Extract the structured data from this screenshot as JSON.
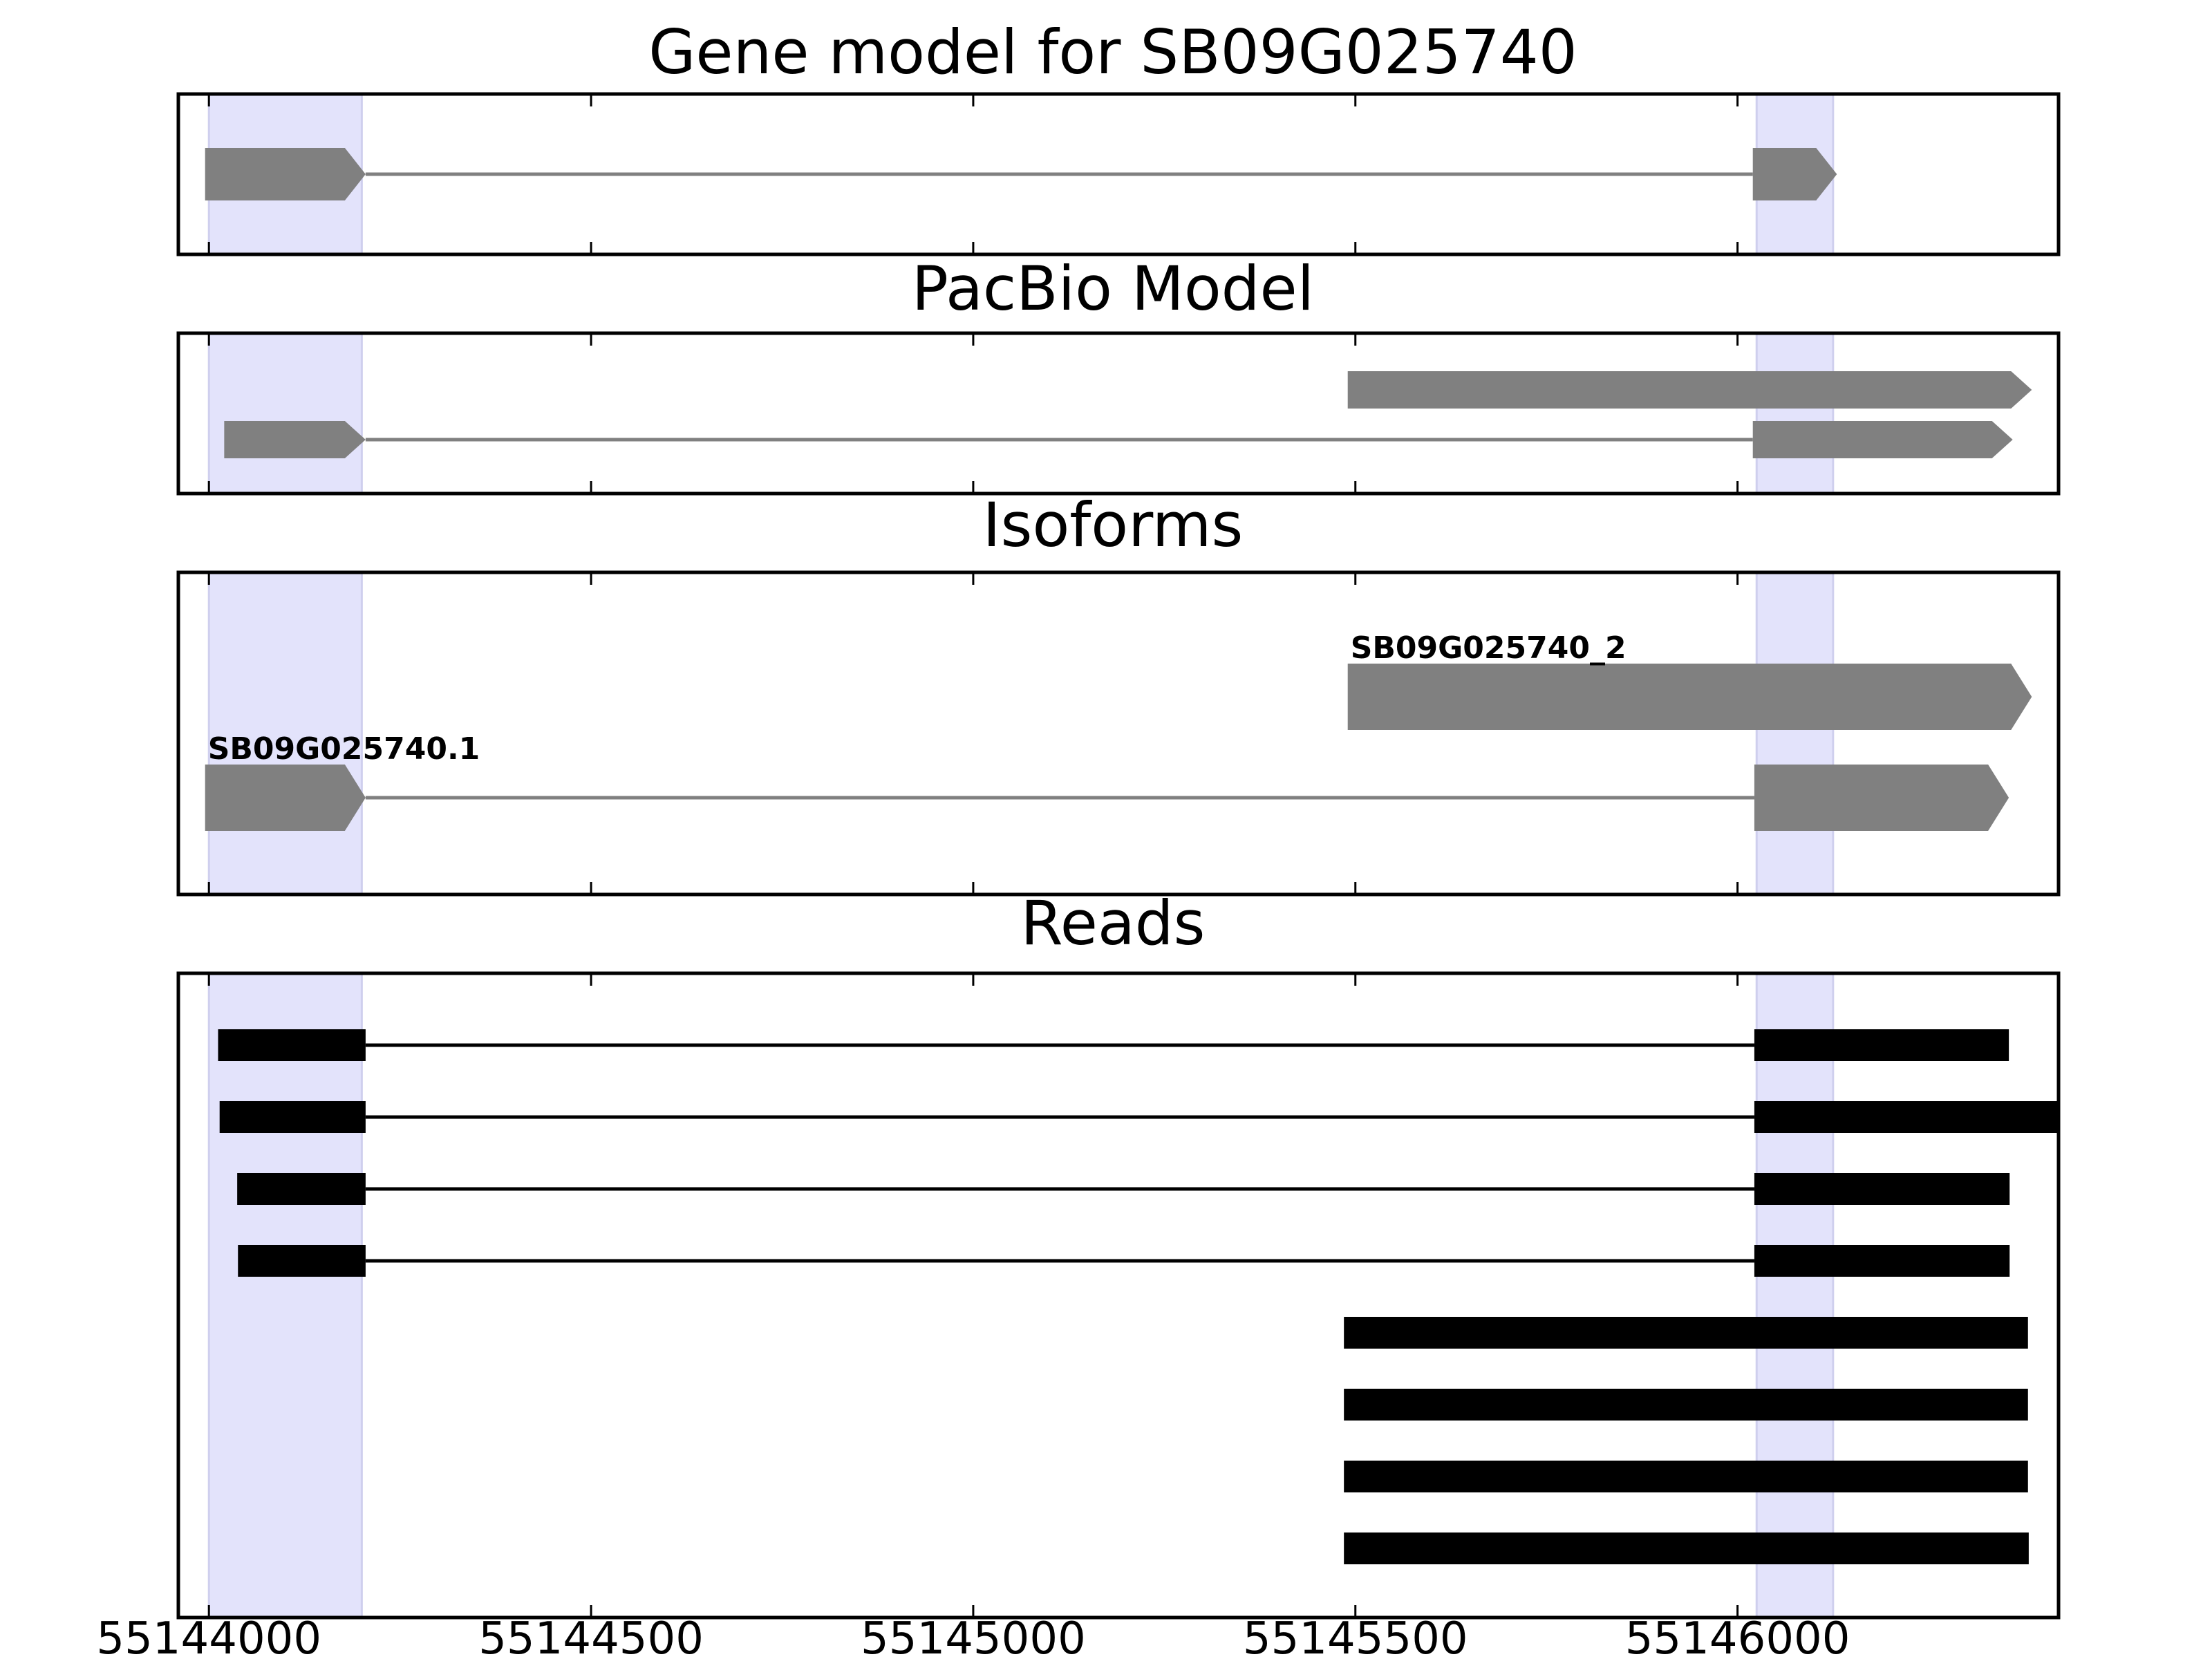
{
  "chart_data": {
    "type": "gene-track",
    "x_ticks": [
      "55144000",
      "55144500",
      "55145000",
      "55145500",
      "55146000"
    ],
    "x_range": [
      55143960,
      55146420
    ],
    "highlight_color": "#e3e3fb",
    "feature_color": "#808080",
    "read_color": "#000000",
    "highlight_regions": [
      {
        "start": 55144000,
        "end": 55144200
      },
      {
        "start": 55146025,
        "end": 55146125
      }
    ],
    "panels": [
      {
        "key": "gene",
        "title": "Gene model for SB09G025740",
        "features": [
          {
            "strand": "+",
            "exons": [
              [
                55143995,
                55144205
              ],
              [
                55146020,
                55146130
              ]
            ]
          }
        ]
      },
      {
        "key": "pacbio",
        "title": "PacBio Model",
        "features": [
          {
            "strand": "+",
            "exons": [
              [
                55145490,
                55146385
              ]
            ]
          },
          {
            "strand": "+",
            "exons": [
              [
                55144020,
                55144205
              ],
              [
                55146020,
                55146360
              ]
            ]
          }
        ]
      },
      {
        "key": "isoforms",
        "title": "Isoforms",
        "features": [
          {
            "name": "SB09G025740_2",
            "strand": "+",
            "exons": [
              [
                55145490,
                55146385
              ]
            ]
          },
          {
            "name": "SB09G025740.1",
            "strand": "+",
            "exons": [
              [
                55143995,
                55144205
              ],
              [
                55146022,
                55146355
              ]
            ]
          }
        ]
      },
      {
        "key": "reads",
        "title": "Reads",
        "reads": [
          {
            "exons": [
              [
                55144012,
                55144205
              ],
              [
                55146022,
                55146355
              ]
            ]
          },
          {
            "exons": [
              [
                55144014,
                55144205
              ],
              [
                55146022,
                55146420
              ]
            ]
          },
          {
            "exons": [
              [
                55144037,
                55144205
              ],
              [
                55146022,
                55146356
              ]
            ]
          },
          {
            "exons": [
              [
                55144038,
                55144205
              ],
              [
                55146022,
                55146356
              ]
            ]
          },
          {
            "exons": [
              [
                55145485,
                55146380
              ]
            ]
          },
          {
            "exons": [
              [
                55145485,
                55146380
              ]
            ]
          },
          {
            "exons": [
              [
                55145485,
                55146380
              ]
            ]
          },
          {
            "exons": [
              [
                55145485,
                55146381
              ]
            ]
          }
        ]
      }
    ]
  }
}
